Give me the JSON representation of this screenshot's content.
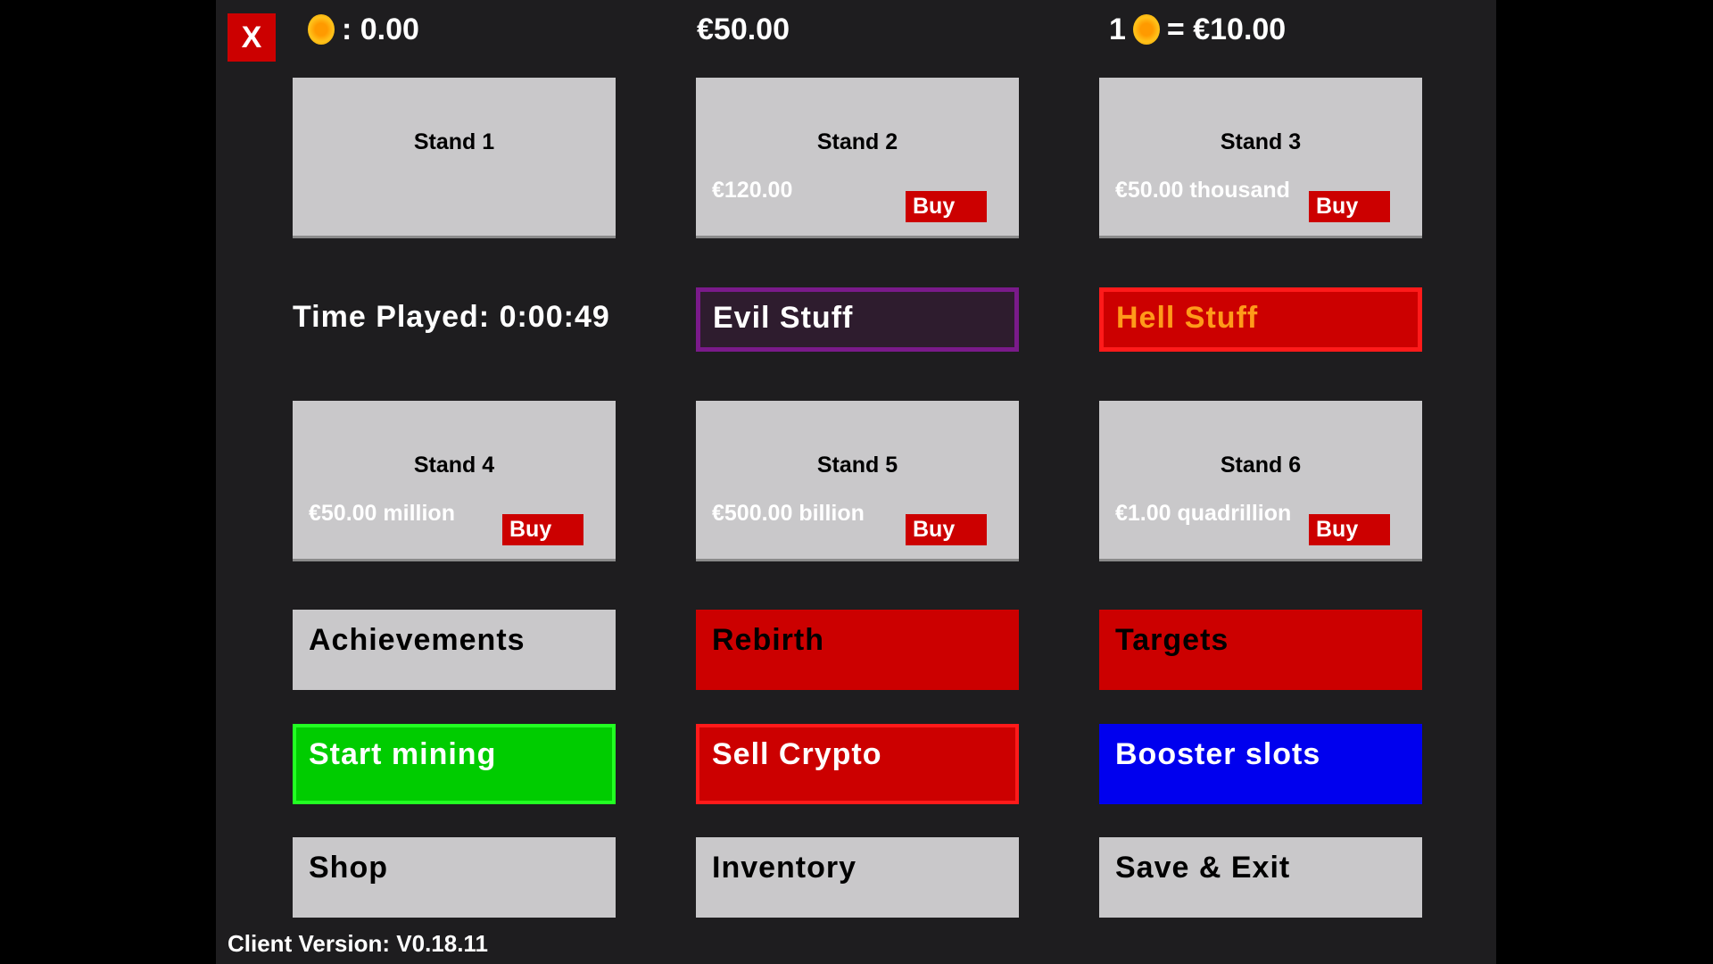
{
  "header": {
    "close_label": "X",
    "crypto_balance": ": 0.00",
    "money": "€50.00",
    "rate_prefix": "1",
    "rate_value": "= €10.00",
    "coin_icon": "coin-icon"
  },
  "stands": [
    {
      "title": "Stand 1",
      "price": "",
      "buy": ""
    },
    {
      "title": "Stand 2",
      "price": "€120.00",
      "buy": "Buy"
    },
    {
      "title": "Stand 3",
      "price": "€50.00 thousand",
      "buy": "Buy"
    },
    {
      "title": "Stand 4",
      "price": "€50.00 million",
      "buy": "Buy"
    },
    {
      "title": "Stand 5",
      "price": "€500.00 billion",
      "buy": "Buy"
    },
    {
      "title": "Stand 6",
      "price": "€1.00 quadrillion",
      "buy": "Buy"
    }
  ],
  "time_played": "Time Played: 0:00:49",
  "evil_stuff": "Evil Stuff",
  "hell_stuff": "Hell Stuff",
  "buttons": {
    "achievements": "Achievements",
    "rebirth": "Rebirth",
    "targets": "Targets",
    "start_mining": "Start mining",
    "sell_crypto": "Sell Crypto",
    "booster_slots": "Booster slots",
    "shop": "Shop",
    "inventory": "Inventory",
    "save_exit": "Save & Exit"
  },
  "client_version": "Client Version: V0.18.11",
  "colors": {
    "panel": "#1e1d1f",
    "red": "#cc0000",
    "green": "#00cc00",
    "blue": "#0000ee",
    "grey": "#c9c8ca",
    "purple": "#7a1a8a",
    "orange": "#ff9a1a"
  }
}
